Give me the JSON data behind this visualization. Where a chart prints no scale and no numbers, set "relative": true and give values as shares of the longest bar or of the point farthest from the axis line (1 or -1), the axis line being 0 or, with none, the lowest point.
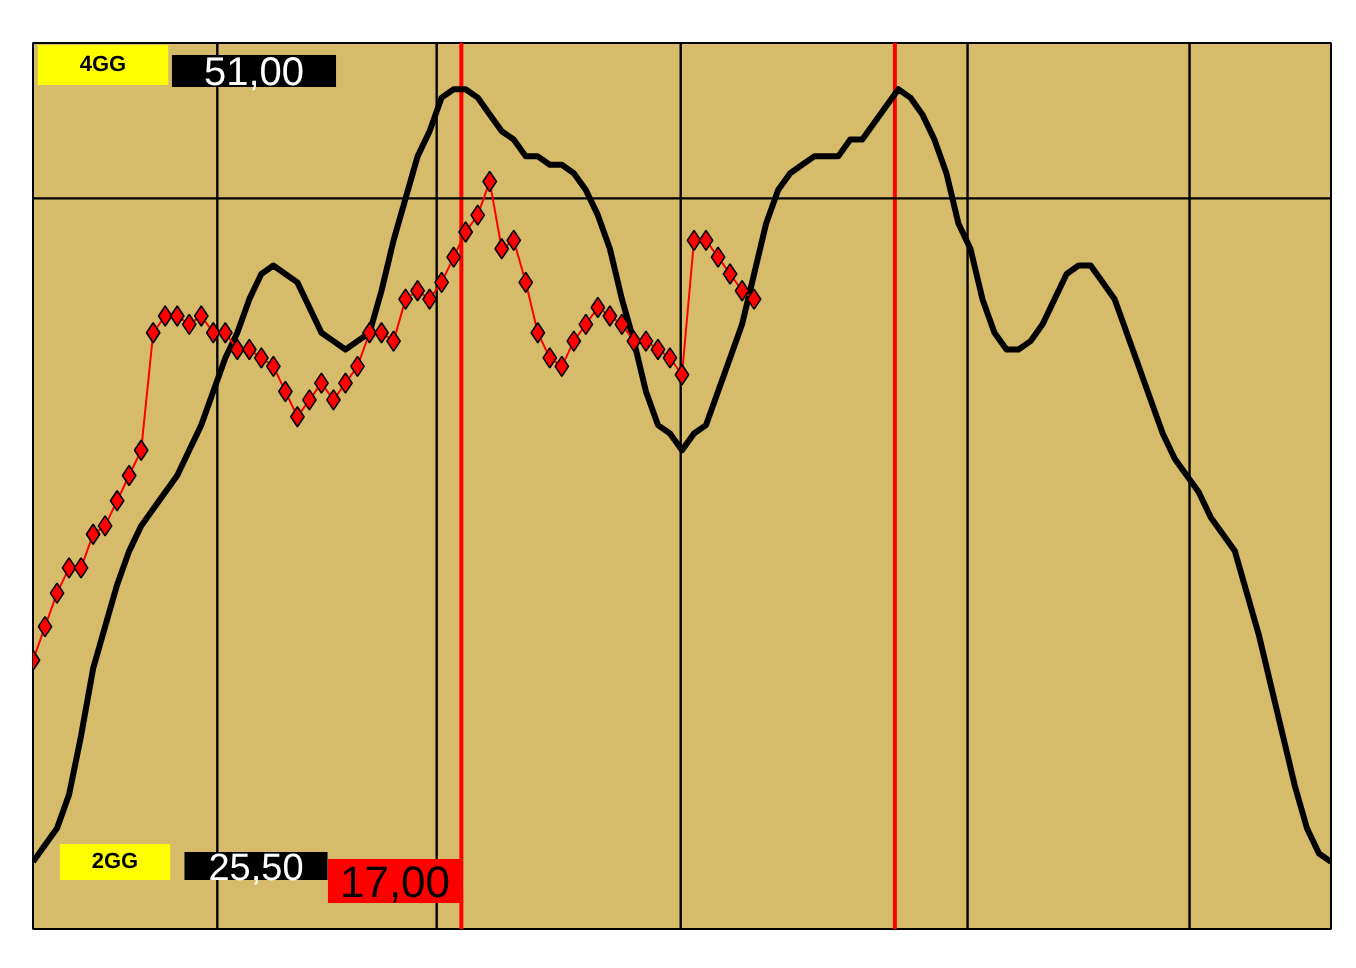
{
  "chart_data": {
    "type": "line",
    "relative": true,
    "categories": [
      null,
      null,
      null,
      null,
      null,
      null,
      null,
      null,
      null,
      null,
      null,
      null,
      null,
      null,
      null,
      null,
      null,
      null,
      null,
      null,
      null,
      null,
      null,
      null,
      null,
      null,
      null,
      null,
      null,
      null,
      null,
      null,
      null,
      null,
      null,
      null,
      null,
      null,
      null,
      null,
      null,
      null,
      null,
      null,
      null,
      null,
      null,
      null,
      null,
      null,
      null,
      null,
      null,
      null,
      null,
      null,
      null,
      null,
      null,
      null,
      null,
      null,
      null,
      null,
      null,
      null,
      null,
      null,
      null,
      null,
      null,
      null,
      null,
      null,
      null,
      null,
      null,
      null,
      null,
      null,
      null,
      null,
      null,
      null,
      null,
      null,
      null,
      null,
      null,
      null,
      null,
      null,
      null,
      null,
      null,
      null,
      null,
      null,
      null,
      null,
      null,
      null,
      null,
      null,
      null,
      null,
      null,
      null,
      null
    ],
    "series": [
      {
        "color": "#000000",
        "values": [
          0.08,
          0.1,
          0.12,
          0.16,
          0.23,
          0.31,
          0.36,
          0.41,
          0.45,
          0.48,
          0.5,
          0.52,
          0.54,
          0.57,
          0.6,
          0.64,
          0.68,
          0.71,
          0.75,
          0.78,
          0.79,
          0.78,
          0.77,
          0.74,
          0.71,
          0.7,
          0.69,
          0.7,
          0.71,
          0.76,
          0.82,
          0.87,
          0.92,
          0.95,
          0.99,
          1.0,
          1.0,
          0.99,
          0.97,
          0.95,
          0.94,
          0.92,
          0.92,
          0.91,
          0.91,
          0.9,
          0.88,
          0.85,
          0.81,
          0.75,
          0.7,
          0.64,
          0.6,
          0.59,
          0.57,
          0.59,
          0.6,
          0.64,
          0.68,
          0.72,
          0.78,
          0.84,
          0.88,
          0.9,
          0.91,
          0.92,
          0.92,
          0.92,
          0.94,
          0.94,
          0.96,
          0.98,
          1.0,
          0.99,
          0.97,
          0.94,
          0.9,
          0.84,
          0.81,
          0.75,
          0.71,
          0.69,
          0.69,
          0.7,
          0.72,
          0.75,
          0.78,
          0.79,
          0.79,
          0.77,
          0.75,
          0.71,
          0.67,
          0.63,
          0.59,
          0.56,
          0.54,
          0.52,
          0.49,
          0.47,
          0.45,
          0.4,
          0.35,
          0.29,
          0.23,
          0.17,
          0.12,
          0.09,
          0.08
        ]
      },
      {
        "color": "#ff0000",
        "marker": "diamond",
        "values": [
          0.32,
          0.36,
          0.4,
          0.43,
          0.43,
          0.47,
          0.48,
          0.51,
          0.54,
          0.57,
          0.71,
          0.73,
          0.73,
          0.72,
          0.73,
          0.71,
          0.71,
          0.69,
          0.69,
          0.68,
          0.67,
          0.64,
          0.61,
          0.63,
          0.65,
          0.63,
          0.65,
          0.67,
          0.71,
          0.71,
          0.7,
          0.75,
          0.76,
          0.75,
          0.77,
          0.8,
          0.83,
          0.85,
          0.89,
          0.81,
          0.82,
          0.77,
          0.71,
          0.68,
          0.67,
          0.7,
          0.72,
          0.74,
          0.73,
          0.72,
          0.7,
          0.7,
          0.69,
          0.68,
          0.66,
          0.82,
          0.82,
          0.8,
          0.78,
          0.76,
          0.75,
          null,
          null,
          null,
          null,
          null,
          null,
          null,
          null,
          null,
          null,
          null,
          null,
          null,
          null,
          null,
          null,
          null,
          null,
          null,
          null,
          null,
          null,
          null,
          null,
          null,
          null,
          null,
          null,
          null,
          null,
          null,
          null,
          null,
          null,
          null,
          null,
          null,
          null,
          null,
          null,
          null,
          null,
          null,
          null,
          null,
          null,
          null,
          null
        ]
      }
    ],
    "ref_lines": [
      {
        "axis": "y",
        "value": 0.87,
        "color": "#000000"
      }
    ],
    "annotations": [
      "4GG",
      "51,00",
      "2GG",
      "25,50",
      "17,00"
    ]
  }
}
